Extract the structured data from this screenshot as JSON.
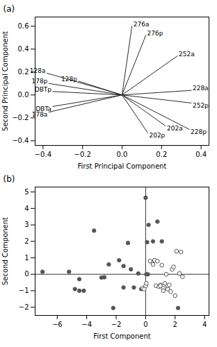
{
  "chart_data": [
    {
      "type": "vector",
      "title": "(a)",
      "xlabel": "First Principal Component",
      "ylabel": "Second Principal Component",
      "labels": [
        "128a",
        "128p",
        "178p",
        "DBTp",
        "DBTa",
        "178a",
        "276a",
        "276p",
        "252a",
        "228a",
        "252p",
        "202a",
        "202p",
        "228p"
      ],
      "x": [
        -0.38,
        -0.22,
        -0.37,
        -0.35,
        -0.35,
        -0.37,
        0.05,
        0.12,
        0.28,
        0.35,
        0.35,
        0.22,
        0.13,
        0.34
      ],
      "values": [
        0.19,
        0.12,
        0.1,
        0.03,
        -0.1,
        -0.15,
        0.6,
        0.52,
        0.34,
        0.04,
        -0.07,
        -0.27,
        -0.33,
        -0.3
      ],
      "color": "#2a2a2a",
      "xlim": [
        -0.44,
        0.44
      ],
      "ylim": [
        -0.44,
        0.68
      ],
      "xticks": [
        -0.4,
        -0.2,
        {
          "value": 0,
          "label": "0.0"
        },
        0.2,
        0.4
      ],
      "yticks": [
        -0.4,
        -0.2,
        {
          "value": 0,
          "label": "0.0"
        },
        0.2,
        0.4,
        0.6
      ]
    },
    {
      "type": "scatter",
      "title": "(b)",
      "xlabel": "First Component",
      "ylabel": "Second Component",
      "series": [
        {
          "color": "#555555",
          "marker": "filled",
          "x": [
            -7.0,
            -5.2,
            -4.8,
            -4.5,
            -4.5,
            -4.2,
            -3.5,
            -3.0,
            -2.8,
            -2.5,
            -2.2,
            -1.8,
            -1.5,
            -1.5,
            -1.2,
            -1.0,
            -0.8,
            -0.5,
            -0.3,
            0.0,
            0.05,
            0.1,
            0.15,
            0.2,
            0.5,
            0.8,
            1.1,
            2.2
          ],
          "values": [
            0.15,
            0.15,
            -0.9,
            -1.0,
            -0.3,
            -1.0,
            2.65,
            -0.2,
            -0.18,
            0.6,
            -2.05,
            0.85,
            -0.8,
            0.5,
            1.9,
            0.3,
            -0.8,
            0.05,
            -0.9,
            4.65,
            0.0,
            1.95,
            0.0,
            3.0,
            2.0,
            3.2,
            2.0,
            -2.05
          ]
        },
        {
          "color": "#555555",
          "marker": "open",
          "x": [
            -0.2,
            -0.1,
            0.0,
            0.05,
            0.3,
            0.5,
            0.6,
            0.7,
            0.8,
            0.9,
            1.0,
            1.0,
            1.1,
            1.2,
            1.2,
            1.3,
            1.4,
            1.5,
            1.5,
            1.6,
            1.7,
            1.8,
            1.9,
            2.0,
            2.1,
            2.3,
            2.4,
            2.5
          ],
          "values": [
            -0.85,
            -0.9,
            -0.7,
            -0.55,
            0.8,
            0.6,
            0.85,
            -0.7,
            0.8,
            -0.75,
            -0.65,
            -0.7,
            0.55,
            -0.85,
            -1.0,
            -0.55,
            0.0,
            -0.9,
            -0.7,
            -0.65,
            -1.05,
            0.3,
            0.45,
            -1.3,
            1.4,
            0.05,
            1.35,
            -0.15
          ]
        }
      ],
      "hlines": [
        0
      ],
      "vlines": [
        0
      ],
      "xlim": [
        -7.5,
        4.3
      ],
      "ylim": [
        -2.5,
        5.3
      ],
      "xticks": [
        -6,
        -4,
        -2,
        0,
        2,
        4
      ],
      "yticks": [
        -2,
        -1,
        0,
        1,
        2,
        3,
        4,
        5
      ]
    }
  ]
}
